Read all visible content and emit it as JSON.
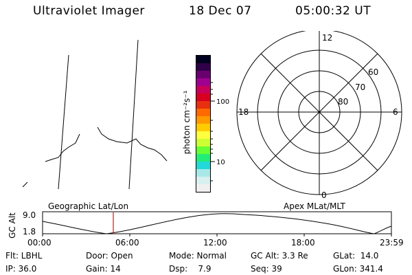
{
  "header": {
    "title": "Ultraviolet Imager",
    "date": "18 Dec 07",
    "time": "05:00:32 UT"
  },
  "colorbar": {
    "unit_label": "photon cm⁻²s⁻¹",
    "ticks": [
      "100",
      "10"
    ],
    "scale": "log",
    "colors": [
      "#000020",
      "#300048",
      "#6a0070",
      "#a00090",
      "#c8005a",
      "#d80020",
      "#e83010",
      "#ff6a00",
      "#ff9900",
      "#ffcc00",
      "#ffff40",
      "#ccff33",
      "#66ff33",
      "#22ee77",
      "#22d8d8",
      "#a8e8e8",
      "#d8f0f0",
      "#f0f0f0"
    ]
  },
  "polar_plot": {
    "mlt_labels": {
      "top": "12",
      "left": "18",
      "right": "6",
      "bottom": "0"
    },
    "lat_labels": [
      "60",
      "70",
      "80"
    ]
  },
  "timeline": {
    "axis_label": "GC Alt",
    "y_ticks": [
      "9.0",
      "1.8"
    ],
    "left_label": "Geographic Lat/Lon",
    "right_label": "Apex MLat/MLT",
    "x_ticks": [
      "00:00",
      "06:00",
      "12:00",
      "18:00",
      "23:59"
    ],
    "marker_color": "#ff0000"
  },
  "footer": {
    "flt": "Flt: LBHL",
    "ip": "IP: 36.0",
    "door": "Door: Open",
    "gain": "Gain: 14",
    "mode": "Mode: Normal",
    "dsp": "Dsp:    7.9",
    "gcalt": "GC Alt: 3.3 Re",
    "seq": "Seq: 39",
    "glat": "GLat:  14.0",
    "glon": "GLon: 341.4"
  }
}
